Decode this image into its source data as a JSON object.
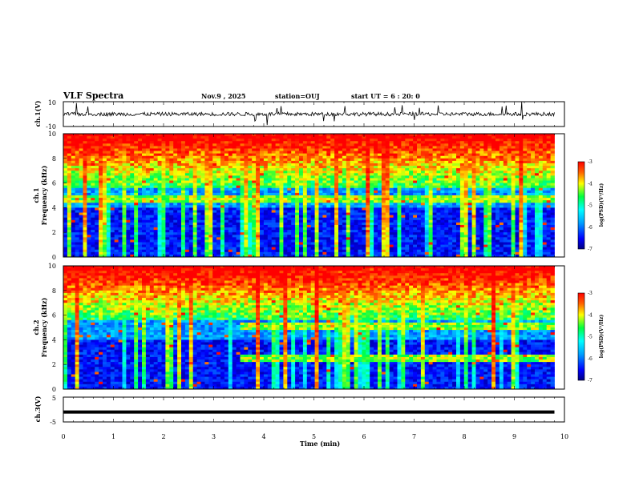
{
  "header": {
    "title": "VLF Spectra",
    "date": "Nov.9 , 2025",
    "station": "station=OUJ",
    "start_ut": "start UT = 6 : 20: 0"
  },
  "chart_data": [
    {
      "type": "line",
      "ylabel": "ch.1(V)",
      "ylim": [
        -10,
        10
      ],
      "yticks": [
        -10,
        10
      ],
      "xlim": [
        0,
        10
      ],
      "series": [
        {
          "baseline": 0,
          "noise_amplitude": 3
        }
      ]
    },
    {
      "type": "heatmap",
      "ylabel": "ch.1\nFrequency (kHz)",
      "xlim": [
        0,
        10
      ],
      "ylim": [
        0,
        10
      ],
      "yticks": [
        0,
        2,
        4,
        6,
        8,
        10
      ],
      "data_xmax": 9.8,
      "emission_bands_khz": [
        [
          4.4,
          4.9
        ]
      ],
      "colorbar": {
        "label": "log(PSD)(V²/Hz)",
        "range": [
          -7,
          -3
        ],
        "ticks": [
          -3,
          -4,
          -5,
          -6,
          -7
        ]
      }
    },
    {
      "type": "heatmap",
      "ylabel": "ch.2\nFrequency (kHz)",
      "xlim": [
        0,
        10
      ],
      "ylim": [
        0,
        10
      ],
      "yticks": [
        0,
        2,
        4,
        6,
        8,
        10
      ],
      "data_xmax": 9.8,
      "emission_bands_khz": [
        [
          4.7,
          5.4
        ],
        [
          2.2,
          2.8
        ]
      ],
      "emission_onset_min": 3.5,
      "colorbar": {
        "label": "log(PSD)(V²/Hz)",
        "range": [
          -7,
          -3
        ],
        "ticks": [
          -3,
          -4,
          -5,
          -6,
          -7
        ]
      }
    },
    {
      "type": "line",
      "ylabel": "ch.3(V)",
      "ylim": [
        -5,
        5
      ],
      "yticks": [
        -5,
        5
      ],
      "xlim": [
        0,
        10
      ],
      "xlabel": "Time (min)",
      "xticks": [
        0,
        1,
        2,
        3,
        4,
        5,
        6,
        7,
        8,
        9,
        10
      ],
      "series": [
        {
          "baseline": -1,
          "noise_amplitude": 0
        }
      ]
    }
  ],
  "colors": {
    "axis": "#000000",
    "trace": "#000000",
    "background": "#ffffff"
  }
}
